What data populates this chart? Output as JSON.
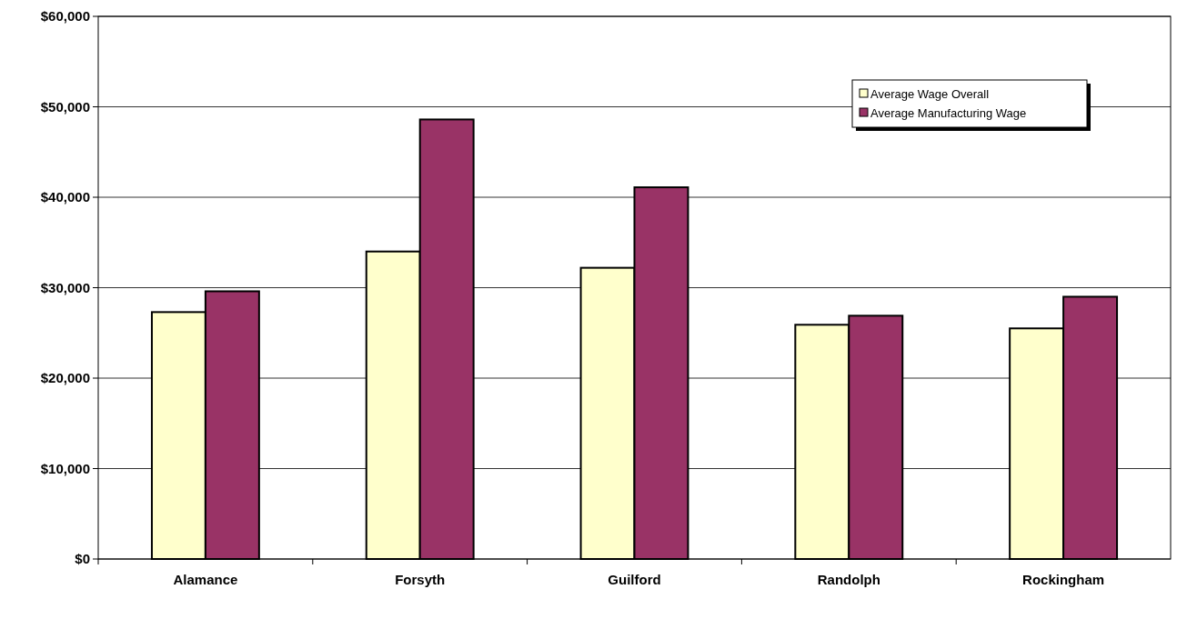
{
  "chart_data": {
    "type": "bar",
    "categories": [
      "Alamance",
      "Forsyth",
      "Guilford",
      "Randolph",
      "Rockingham"
    ],
    "series": [
      {
        "name": "Average Wage Overall",
        "color": "#ffffcc",
        "values": [
          27300,
          34000,
          32200,
          25900,
          25500
        ]
      },
      {
        "name": "Average Manufacturing Wage",
        "color": "#993366",
        "values": [
          29600,
          48600,
          41100,
          26900,
          29000
        ]
      }
    ],
    "ylim": [
      0,
      60000
    ],
    "yticks": [
      {
        "value": 0,
        "label": "$0"
      },
      {
        "value": 10000,
        "label": "$10,000"
      },
      {
        "value": 20000,
        "label": "$20,000"
      },
      {
        "value": 30000,
        "label": "$30,000"
      },
      {
        "value": 40000,
        "label": "$40,000"
      },
      {
        "value": 50000,
        "label": "$50,000"
      },
      {
        "value": 60000,
        "label": "$60,000"
      }
    ],
    "grid": "y",
    "legend": "top right"
  }
}
